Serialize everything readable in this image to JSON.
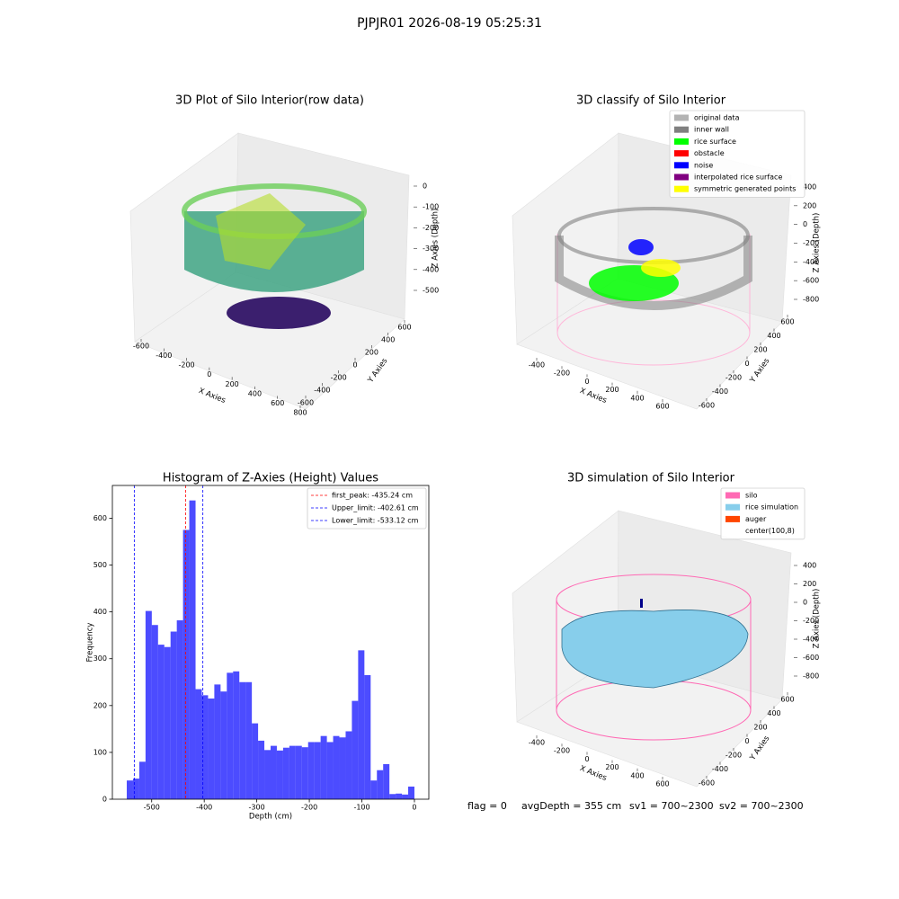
{
  "title": "PJPJR01 2026-08-19 05:25:31",
  "chart_data": [
    {
      "type": "scatter3d",
      "title": "3D Plot of Silo Interior(row data)",
      "xlabel": "X Axies",
      "ylabel": "Y Axies",
      "zlabel": "Z Axies (Depth)",
      "xlim": [
        -600,
        800
      ],
      "xticks": [
        -600,
        -400,
        -200,
        0,
        200,
        400,
        600,
        800
      ],
      "ylim": [
        -600,
        600
      ],
      "yticks": [
        -600,
        -400,
        -200,
        0,
        200,
        400,
        600
      ],
      "zlim": [
        -500,
        0
      ],
      "zticks": [
        -500,
        -400,
        -300,
        -200,
        -100,
        0
      ]
    },
    {
      "type": "scatter3d",
      "title": "3D classify of Silo Interior",
      "xlabel": "X Axies",
      "ylabel": "Y Axies",
      "zlabel": "Z Axies (Depth)",
      "xlim": [
        -400,
        600
      ],
      "xticks": [
        -400,
        -200,
        0,
        200,
        400,
        600
      ],
      "ylim": [
        -600,
        600
      ],
      "yticks": [
        -600,
        -400,
        -200,
        0,
        200,
        400,
        600
      ],
      "zlim": [
        -800,
        400
      ],
      "zticks": [
        -800,
        -600,
        -400,
        -200,
        0,
        200,
        400
      ],
      "series": [
        {
          "name": "original data",
          "color": "#b3b3b3"
        },
        {
          "name": "inner wall",
          "color": "#808080"
        },
        {
          "name": "rice surface",
          "color": "#00ff00"
        },
        {
          "name": "obstacle",
          "color": "#ff0000"
        },
        {
          "name": "noise",
          "color": "#0000ff"
        },
        {
          "name": "interpolated rice surface",
          "color": "#800080"
        },
        {
          "name": "symmetric generated points",
          "color": "#ffff00"
        }
      ]
    },
    {
      "type": "histogram",
      "title": "Histogram of Z-Axies (Height) Values",
      "xlabel": "Depth (cm)",
      "ylabel": "Frequency",
      "color": "#0000ff",
      "bins": [
        -547.4,
        -535.5,
        -523.6,
        -511.7,
        -499.8,
        -487.9,
        -476.0,
        -464.1,
        -452.2,
        -440.3,
        -428.4,
        -416.5,
        -404.6,
        -392.7,
        -380.8,
        -368.9,
        -357.0,
        -345.1,
        -333.2,
        -321.3,
        -309.4,
        -297.5,
        -285.6,
        -273.7,
        -261.8,
        -249.9,
        -238.0,
        -226.1,
        -214.2,
        -202.3,
        -190.4,
        -178.5,
        -166.6,
        -154.7,
        -142.8,
        -130.9,
        -119.0,
        -107.1,
        -95.2,
        -83.3,
        -71.4,
        -59.5,
        -47.6,
        -35.7,
        -23.8,
        -11.9,
        0
      ],
      "values": [
        40,
        44,
        80,
        402,
        372,
        330,
        325,
        358,
        382,
        575,
        638,
        235,
        222,
        215,
        245,
        230,
        270,
        273,
        250,
        250,
        162,
        125,
        105,
        114,
        104,
        110,
        114,
        114,
        111,
        122,
        122,
        135,
        122,
        135,
        132,
        145,
        210,
        318,
        265,
        40,
        62,
        75,
        11,
        12,
        10,
        27
      ],
      "xlim": [
        -574.8,
        27.4
      ],
      "xticks": [
        -500,
        -400,
        -300,
        -200,
        -100,
        0
      ],
      "ylim": [
        0,
        670
      ],
      "yticks": [
        0,
        100,
        200,
        300,
        400,
        500,
        600
      ],
      "lines": [
        {
          "name": "first_peak: -435.24 cm",
          "value": -435.24,
          "color": "#ff0000"
        },
        {
          "name": "Upper_limit: -402.61 cm",
          "value": -402.61,
          "color": "#0000ff"
        },
        {
          "name": "Lower_limit: -533.12 cm",
          "value": -533.12,
          "color": "#0000ff"
        }
      ]
    },
    {
      "type": "surface3d",
      "title": "3D simulation of Silo Interior",
      "xlabel": "X Axies",
      "ylabel": "Y Axies",
      "zlabel": "Z Axies (Depth)",
      "xlim": [
        -400,
        600
      ],
      "xticks": [
        -400,
        -200,
        0,
        200,
        400,
        600
      ],
      "ylim": [
        -600,
        600
      ],
      "yticks": [
        -600,
        -400,
        -200,
        0,
        200,
        400,
        600
      ],
      "zlim": [
        -800,
        400
      ],
      "zticks": [
        -800,
        -600,
        -400,
        -200,
        0,
        200,
        400
      ],
      "series": [
        {
          "name": "silo",
          "color": "#ff69b4"
        },
        {
          "name": "rice simulation",
          "color": "#87ceeb"
        },
        {
          "name": "auger",
          "color": "#ff4500"
        },
        {
          "name": "center(100,8)",
          "color": "#ffffff"
        }
      ]
    }
  ],
  "footer": [
    "flag = 0",
    "avgDepth = 355 cm",
    "sv1 = 700~2300",
    "sv2 = 700~2300"
  ]
}
